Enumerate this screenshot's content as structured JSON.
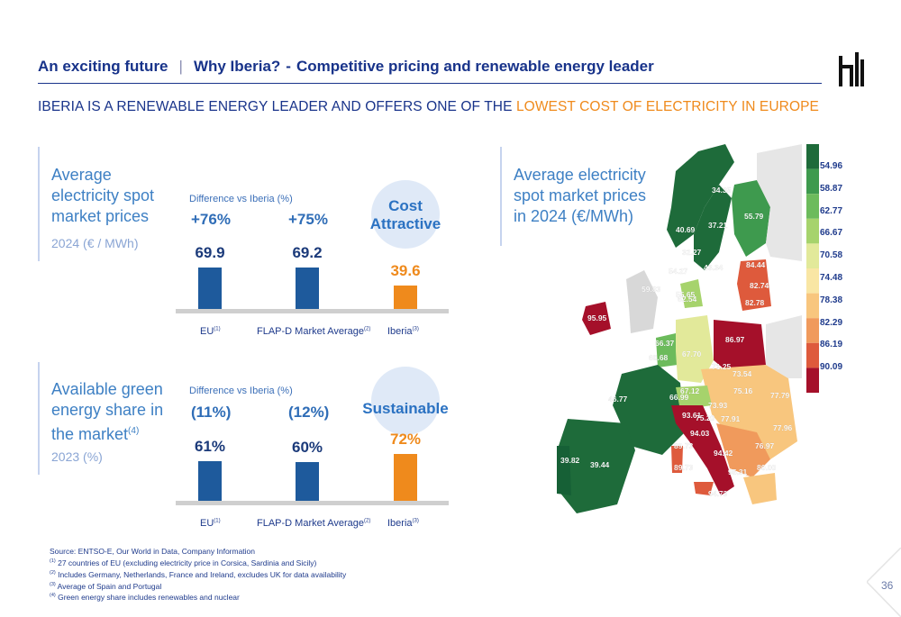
{
  "header": {
    "section": "An exciting future",
    "separator": "|",
    "topic": "Why Iberia?",
    "dash": "-",
    "title": "Competitive pricing and renewable energy leader"
  },
  "subtitle": {
    "main": "IBERIA IS A RENEWABLE ENERGY LEADER AND OFFERS ONE OF THE ",
    "highlight": "LOWEST COST OF ELECTRICITY IN EUROPE"
  },
  "colors": {
    "navy": "#18338a",
    "bar_blue": "#1e5a9c",
    "orange": "#ef8a1c",
    "light_blue": "#3e80c4"
  },
  "panel_prices": {
    "title_l1": "Average",
    "title_l2": "electricity spot",
    "title_l3": "market prices",
    "sub": "2024 (€ / MWh)",
    "diff_label": "Difference vs Iberia (%)",
    "diffs": [
      "+76%",
      "+75%"
    ],
    "bubble_l1": "Cost",
    "bubble_l2": "Attractive",
    "bar_labels": [
      "69.9",
      "69.2",
      "39.6"
    ],
    "chart_data": {
      "type": "bar",
      "categories": [
        "EU",
        "FLAP-D Market Average",
        "Iberia"
      ],
      "values": [
        69.9,
        69.2,
        39.6
      ]
    }
  },
  "panel_green": {
    "title_l1": "Available green",
    "title_l2": "energy share in",
    "title_l3": "the market",
    "title_sup": "(4)",
    "sub": "2023 (%)",
    "diff_label": "Difference vs Iberia (%)",
    "diffs": [
      "(11%)",
      "(12%)"
    ],
    "bubble_l1": "Sustainable",
    "bar_labels": [
      "61%",
      "60%",
      "72%"
    ],
    "chart_data": {
      "type": "bar",
      "categories": [
        "EU",
        "FLAP-D Market Average",
        "Iberia"
      ],
      "values": [
        61,
        60,
        72
      ]
    }
  },
  "xlabels": {
    "eu": "EU",
    "eu_sup": "(1)",
    "flap": "FLAP-D Market Average",
    "flap_sup": "(2)",
    "iberia": "Iberia",
    "iberia_sup": "(3)"
  },
  "map": {
    "title_l1": "Average electricity",
    "title_l2": "spot market prices",
    "title_l3": "in 2024 (€/MWh)",
    "legend": [
      "54.96",
      "58.87",
      "62.77",
      "66.67",
      "70.58",
      "74.48",
      "78.38",
      "82.29",
      "86.19",
      "90.09"
    ],
    "legend_colors": [
      "#1e6b3a",
      "#3e9a4e",
      "#6cbb5c",
      "#a6d36c",
      "#e2e99a",
      "#f9e6a4",
      "#f8c67e",
      "#f09a5c",
      "#de5a3c",
      "#a5102a"
    ],
    "labels": [
      {
        "text": "34.35",
        "color": "#1e6b3a"
      },
      {
        "text": "55.79",
        "color": "#3e9a4e"
      },
      {
        "text": "40.69",
        "color": "#1e6b3a"
      },
      {
        "text": "37.21",
        "color": "#1e6b3a"
      },
      {
        "text": "32.27",
        "color": "#1e6b3a"
      },
      {
        "text": "54.27",
        "color": "#1e6b3a"
      },
      {
        "text": "43.34",
        "color": "#1e6b3a"
      },
      {
        "text": "84.44",
        "color": "#de5a3c"
      },
      {
        "text": "82.74",
        "color": "#de5a3c"
      },
      {
        "text": "82.78",
        "color": "#de5a3c"
      },
      {
        "text": "55.65",
        "color": "#3e9a4e"
      },
      {
        "text": "62.54",
        "color": "#a6d36c"
      },
      {
        "text": "59.83",
        "color": "#ffffff"
      },
      {
        "text": "95.95",
        "color": "#a5102a"
      },
      {
        "text": "86.97",
        "color": "#de5a3c"
      },
      {
        "text": "66.37",
        "color": "#a6d36c"
      },
      {
        "text": "67.70",
        "color": "#a6d36c"
      },
      {
        "text": "60.68",
        "color": "#6cbb5c"
      },
      {
        "text": "71.25",
        "color": "#e2e99a"
      },
      {
        "text": "73.54",
        "color": "#f9e6a4"
      },
      {
        "text": "67.12",
        "color": "#a6d36c"
      },
      {
        "text": "75.16",
        "color": "#f9e6a4"
      },
      {
        "text": "77.79",
        "color": "#f8c67e"
      },
      {
        "text": "46.77",
        "color": "#1e6b3a"
      },
      {
        "text": "66.99",
        "color": "#a6d36c"
      },
      {
        "text": "73.93",
        "color": "#f9e6a4"
      },
      {
        "text": "93.61",
        "color": "#a5102a"
      },
      {
        "text": "75.20",
        "color": "#f9e6a4"
      },
      {
        "text": "77.91",
        "color": "#f8c67e"
      },
      {
        "text": "77.96",
        "color": "#f8c67e"
      },
      {
        "text": "94.03",
        "color": "#a5102a"
      },
      {
        "text": "89.73",
        "color": "#de5a3c"
      },
      {
        "text": "94.42",
        "color": "#a5102a"
      },
      {
        "text": "76.97",
        "color": "#f8c67e"
      },
      {
        "text": "39.82",
        "color": "#1e6b3a"
      },
      {
        "text": "39.44",
        "color": "#1e6b3a"
      },
      {
        "text": "89.73",
        "color": "#de5a3c"
      },
      {
        "text": "95.31",
        "color": "#a5102a"
      },
      {
        "text": "80.00",
        "color": "#f8c67e"
      },
      {
        "text": "94.73",
        "color": "#a5102a"
      }
    ]
  },
  "sources": {
    "l0": "Source: ENTSO-E, Our World in Data, Company Information",
    "l1_sup": "(1)",
    "l1": " 27 countries of EU (excluding electricity price in Corsica, Sardinia and Sicily)",
    "l2_sup": "(2)",
    "l2": " Includes Germany, Netherlands, France and Ireland, excludes UK for data availability",
    "l3_sup": "(3)",
    "l3": " Average of Spain and Portugal",
    "l4_sup": "(4)",
    "l4": " Green energy share includes renewables and nuclear"
  },
  "page_number": "36"
}
